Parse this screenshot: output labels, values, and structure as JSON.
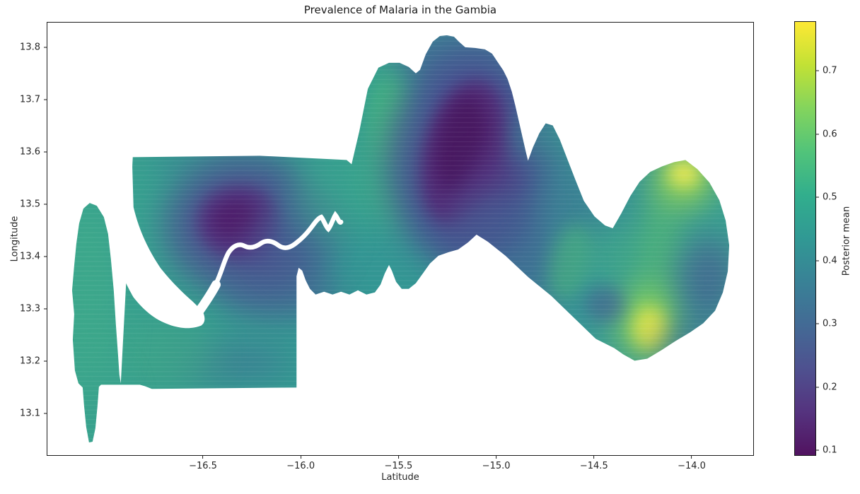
{
  "figure": {
    "title": "Prevalence of Malaria in the Gambia"
  },
  "axes": {
    "xlabel": "Latitude",
    "ylabel": "Longitude",
    "x_ticks": [
      "−16.5",
      "−16.0",
      "−15.5",
      "−15.0",
      "−14.5",
      "−14.0"
    ],
    "y_ticks": [
      "13.8",
      "13.7",
      "13.6",
      "13.5",
      "13.4",
      "13.3",
      "13.2",
      "13.1"
    ]
  },
  "colorbar": {
    "label": "Posterior mean",
    "ticks": [
      "0.1",
      "0.2",
      "0.3",
      "0.4",
      "0.5",
      "0.6",
      "0.7"
    ],
    "colormap": "viridis"
  },
  "chart_data": {
    "type": "scatter",
    "title": "Prevalence of Malaria in the Gambia",
    "xlabel": "Latitude",
    "ylabel": "Longitude",
    "colorbar_label": "Posterior mean",
    "colormap": "viridis",
    "xlim": [
      -17.3,
      -13.68
    ],
    "ylim": [
      13.02,
      13.85
    ],
    "x_ticks": [
      -16.5,
      -16.0,
      -15.5,
      -15.0,
      -14.5,
      -14.0
    ],
    "y_ticks": [
      13.8,
      13.7,
      13.6,
      13.5,
      13.4,
      13.3,
      13.2,
      13.1
    ],
    "color_ticks": [
      0.1,
      0.2,
      0.3,
      0.4,
      0.5,
      0.6,
      0.7
    ],
    "value_range": [
      0.09,
      0.78
    ],
    "viridis_stops": [
      "#440154",
      "#482475",
      "#414487",
      "#355f8d",
      "#2a788e",
      "#21918c",
      "#22a884",
      "#44bf70",
      "#7ad151",
      "#bddf26",
      "#fde725"
    ],
    "description": "Dense scatter of spatial model predictions filling the outline of The Gambia; point color encodes the posterior mean malaria prevalence. Mostly teal-green (≈0.4–0.5) with two dark-purple low-prevalence cores and two yellow high-prevalence hotspots in the east. A white gap traces the Gambia River from the west coast inland.",
    "notable_regions": [
      {
        "x_latitude": -16.33,
        "y_longitude": 13.47,
        "posterior_mean": 0.1,
        "note": "dark-purple low-prevalence core, west-central"
      },
      {
        "x_latitude": -15.19,
        "y_longitude": 13.61,
        "posterior_mean": 0.1,
        "note": "dark-purple low-prevalence core, north-central"
      },
      {
        "x_latitude": -14.04,
        "y_longitude": 13.56,
        "posterior_mean": 0.78,
        "note": "yellow high-prevalence hotspot, north-east"
      },
      {
        "x_latitude": -14.21,
        "y_longitude": 13.27,
        "posterior_mean": 0.72,
        "note": "yellow-green high-prevalence hotspot, south-east"
      },
      {
        "x_latitude": -16.75,
        "y_longitude": 13.35,
        "posterior_mean": 0.5,
        "note": "moderate teal-green prevalence, western coastal strip"
      }
    ]
  }
}
